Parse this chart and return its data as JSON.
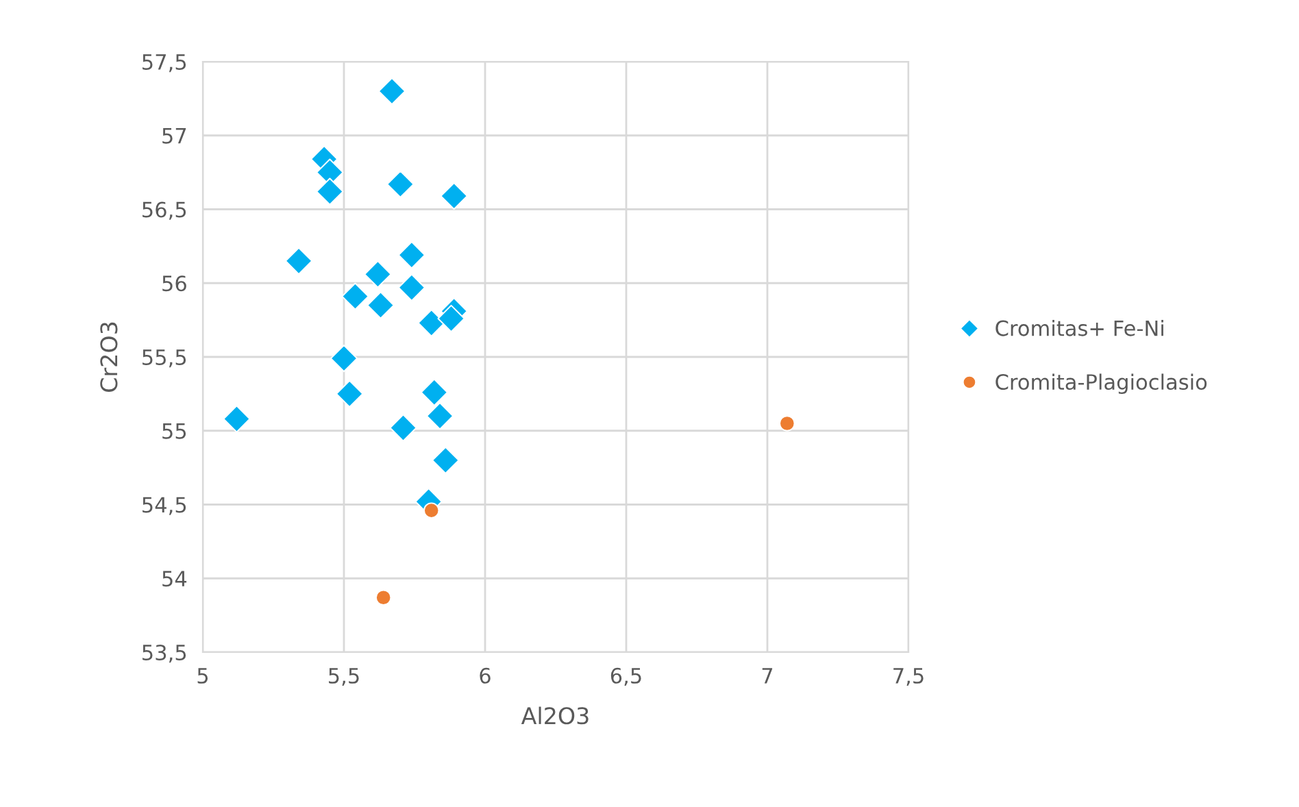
{
  "chart_data": {
    "type": "scatter",
    "xlabel": "Al2O3",
    "ylabel": "Cr2O3",
    "xlim": [
      5,
      7.5
    ],
    "ylim": [
      53.5,
      57.5
    ],
    "xticks": [
      {
        "value": 5,
        "label": "5"
      },
      {
        "value": 5.5,
        "label": "5,5"
      },
      {
        "value": 6,
        "label": "6"
      },
      {
        "value": 6.5,
        "label": "6,5"
      },
      {
        "value": 7,
        "label": "7"
      },
      {
        "value": 7.5,
        "label": "7,5"
      }
    ],
    "yticks": [
      {
        "value": 53.5,
        "label": "53,5"
      },
      {
        "value": 54,
        "label": "54"
      },
      {
        "value": 54.5,
        "label": "54,5"
      },
      {
        "value": 55,
        "label": "55"
      },
      {
        "value": 55.5,
        "label": "55,5"
      },
      {
        "value": 56,
        "label": "56"
      },
      {
        "value": 56.5,
        "label": "56,5"
      },
      {
        "value": 57,
        "label": "57"
      },
      {
        "value": 57.5,
        "label": "57,5"
      }
    ],
    "grid": true,
    "legend": "right",
    "series": [
      {
        "name": "Cromitas+ Fe-Ni",
        "color": "#00b0f0",
        "marker": "diamond",
        "x": [
          5.67,
          5.43,
          5.45,
          5.45,
          5.7,
          5.89,
          5.34,
          5.62,
          5.74,
          5.54,
          5.63,
          5.74,
          5.81,
          5.89,
          5.88,
          5.5,
          5.52,
          5.12,
          5.82,
          5.84,
          5.71,
          5.86,
          5.8
        ],
        "values": [
          57.3,
          56.84,
          56.75,
          56.62,
          56.67,
          56.59,
          56.15,
          56.06,
          56.19,
          55.91,
          55.85,
          55.97,
          55.73,
          55.81,
          55.76,
          55.49,
          55.25,
          55.08,
          55.26,
          55.1,
          55.02,
          54.8,
          54.52
        ]
      },
      {
        "name": "Cromita-Plagioclasio",
        "color": "#ed7d31",
        "marker": "circle",
        "x": [
          5.81,
          5.64,
          7.07
        ],
        "values": [
          54.46,
          53.87,
          55.05
        ]
      }
    ]
  }
}
